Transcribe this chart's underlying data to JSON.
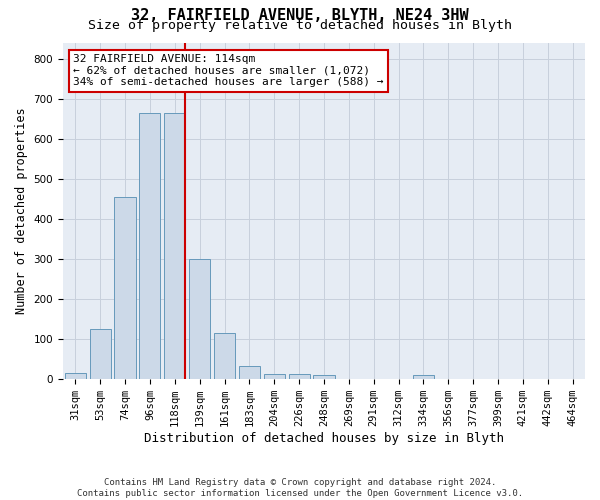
{
  "title": "32, FAIRFIELD AVENUE, BLYTH, NE24 3HW",
  "subtitle": "Size of property relative to detached houses in Blyth",
  "xlabel": "Distribution of detached houses by size in Blyth",
  "ylabel": "Number of detached properties",
  "bar_labels": [
    "31sqm",
    "53sqm",
    "74sqm",
    "96sqm",
    "118sqm",
    "139sqm",
    "161sqm",
    "183sqm",
    "204sqm",
    "226sqm",
    "248sqm",
    "269sqm",
    "291sqm",
    "312sqm",
    "334sqm",
    "356sqm",
    "377sqm",
    "399sqm",
    "421sqm",
    "442sqm",
    "464sqm"
  ],
  "bar_heights": [
    15,
    125,
    455,
    665,
    665,
    300,
    115,
    32,
    13,
    13,
    10,
    0,
    0,
    0,
    10,
    0,
    0,
    0,
    0,
    0,
    0
  ],
  "bar_color": "#ccd9e8",
  "bar_edgecolor": "#6699bb",
  "vline_x_index": 4,
  "vline_color": "#cc0000",
  "annotation_line1": "32 FAIRFIELD AVENUE: 114sqm",
  "annotation_line2": "← 62% of detached houses are smaller (1,072)",
  "annotation_line3": "34% of semi-detached houses are larger (588) →",
  "annotation_box_edgecolor": "#cc0000",
  "annotation_box_facecolor": "#ffffff",
  "ylim": [
    0,
    840
  ],
  "yticks": [
    0,
    100,
    200,
    300,
    400,
    500,
    600,
    700,
    800
  ],
  "grid_color": "#c8d0dc",
  "bg_color": "#e6ecf4",
  "footnote1": "Contains HM Land Registry data © Crown copyright and database right 2024.",
  "footnote2": "Contains public sector information licensed under the Open Government Licence v3.0.",
  "title_fontsize": 11,
  "subtitle_fontsize": 9.5,
  "xlabel_fontsize": 9,
  "ylabel_fontsize": 8.5,
  "tick_fontsize": 7.5,
  "annot_fontsize": 8,
  "footnote_fontsize": 6.5
}
